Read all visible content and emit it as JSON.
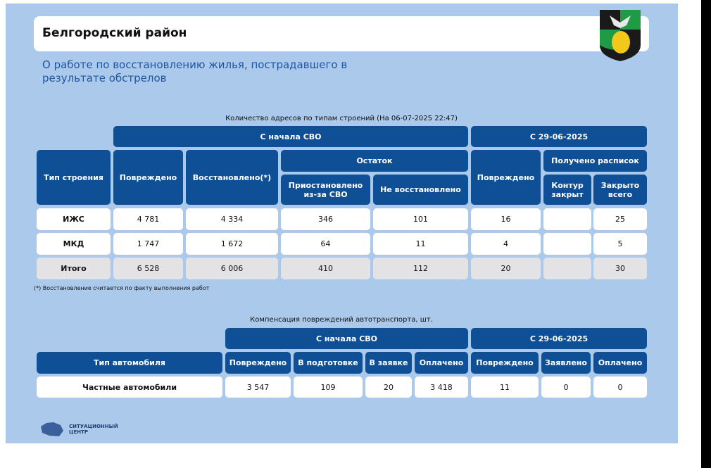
{
  "header": {
    "title": "Белгородский район",
    "subtitle": "О работе по восстановлению жилья, пострадавшего в результате обстрелов"
  },
  "colors": {
    "header_cell": "#0f4f96",
    "panel": "#abc9ea",
    "total_row": "#e3e3e6"
  },
  "housing": {
    "caption": "Количество адресов по типам строений (На 06-07-2025 22:47)",
    "group_since_svo": "С начала СВО",
    "group_since_date": "С 29-06-2025",
    "col_type": "Тип строения",
    "col_damaged": "Повреждено",
    "col_restored": "Восстановлено(*)",
    "col_remaining": "Остаток",
    "col_suspended": "Приостановлено из-за СВО",
    "col_not_restored": "Не восстановлено",
    "col_damaged2": "Повреждено",
    "col_receipts": "Получено расписок",
    "col_contour": "Контур закрыт",
    "col_closed": "Закрыто всего",
    "rows": [
      {
        "type": "ИЖС",
        "damaged": "4 781",
        "restored": "4 334",
        "suspended": "346",
        "not_restored": "101",
        "damaged2": "16",
        "contour": "",
        "closed": "25"
      },
      {
        "type": "МКД",
        "damaged": "1 747",
        "restored": "1 672",
        "suspended": "64",
        "not_restored": "11",
        "damaged2": "4",
        "contour": "",
        "closed": "5"
      },
      {
        "type": "Итого",
        "damaged": "6 528",
        "restored": "6 006",
        "suspended": "410",
        "not_restored": "112",
        "damaged2": "20",
        "contour": "",
        "closed": "30"
      }
    ],
    "note": "(*) Восстановление считается по факту выполнения работ"
  },
  "vehicles": {
    "caption": "Компенсация повреждений автотранспорта, шт.",
    "group_since_svo": "С начала СВО",
    "group_since_date": "С 29-06-2025",
    "col_type": "Тип автомобиля",
    "col_damaged": "Повреждено",
    "col_preparing": "В подготовке",
    "col_applied": "В заявке",
    "col_paid": "Оплачено",
    "col_damaged2": "Повреждено",
    "col_declared": "Заявлено",
    "col_paid2": "Оплачено",
    "row": {
      "type": "Частные автомобили",
      "damaged": "3 547",
      "preparing": "109",
      "applied": "20",
      "paid": "3 418",
      "damaged2": "11",
      "declared": "0",
      "paid2": "0"
    }
  },
  "footer": {
    "logo_line1": "СИТУАЦИОННЫЙ",
    "logo_line2": "ЦЕНТР"
  }
}
